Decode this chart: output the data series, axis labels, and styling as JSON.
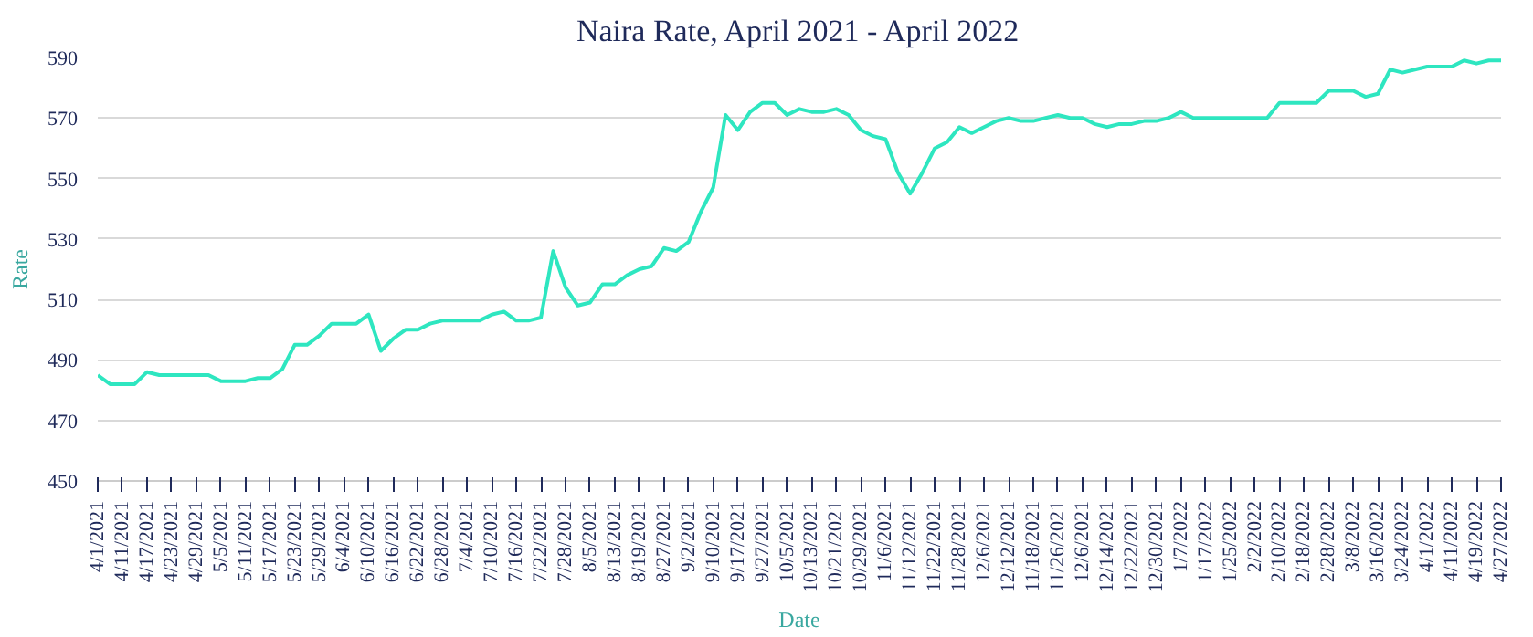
{
  "chart_data": {
    "type": "line",
    "title": "Naira Rate, April 2021 - April 2022",
    "xlabel": "Date",
    "ylabel": "Rate",
    "categories": [
      "4/1/2021",
      null,
      "4/11/2021",
      null,
      "4/17/2021",
      null,
      "4/23/2021",
      null,
      "4/29/2021",
      null,
      "5/5/2021",
      null,
      "5/11/2021",
      null,
      "5/17/2021",
      null,
      "5/23/2021",
      null,
      "5/29/2021",
      null,
      "6/4/2021",
      null,
      "6/10/2021",
      null,
      "6/16/2021",
      null,
      "6/22/2021",
      null,
      "6/28/2021",
      null,
      "7/4/2021",
      null,
      "7/10/2021",
      null,
      "7/16/2021",
      null,
      "7/22/2021",
      null,
      "7/28/2021",
      null,
      "8/5/2021",
      null,
      "8/13/2021",
      null,
      "8/19/2021",
      null,
      "8/27/2021",
      null,
      "9/2/2021",
      null,
      "9/10/2021",
      null,
      "9/17/2021",
      null,
      "9/27/2021",
      null,
      "10/5/2021",
      null,
      "10/13/2021",
      null,
      "10/21/2021",
      null,
      "10/29/2021",
      null,
      "11/6/2021",
      null,
      "11/12/2021",
      null,
      "11/22/2021",
      null,
      "11/28/2021",
      null,
      "12/6/2021",
      null,
      "12/12/2021",
      null,
      "11/18/2021",
      null,
      "11/26/2021",
      null,
      "12/6/2021",
      null,
      "12/14/2021",
      null,
      "12/22/2021",
      null,
      "12/30/2021",
      null,
      "1/7/2022",
      null,
      "1/17/2022",
      null,
      "1/25/2022",
      null,
      "2/2/2022",
      null,
      "2/10/2022",
      null,
      "2/18/2022",
      null,
      "2/28/2022",
      null,
      "3/8/2022",
      null,
      "3/16/2022",
      null,
      "3/24/2022",
      null,
      "4/1/2022",
      null,
      "4/11/2022",
      null,
      "4/19/2022",
      null,
      "4/27/2022"
    ],
    "series": [
      {
        "color": "#2ee6c0",
        "values": [
          485,
          482,
          482,
          482,
          486,
          485,
          485,
          485,
          485,
          485,
          483,
          483,
          483,
          484,
          484,
          487,
          495,
          495,
          498,
          502,
          502,
          502,
          505,
          493,
          497,
          500,
          500,
          502,
          503,
          503,
          503,
          503,
          505,
          506,
          503,
          503,
          504,
          526,
          514,
          508,
          509,
          515,
          515,
          518,
          520,
          521,
          527,
          526,
          529,
          539,
          547,
          571,
          566,
          572,
          575,
          575,
          571,
          573,
          572,
          572,
          573,
          571,
          566,
          564,
          563,
          552,
          545,
          552,
          560,
          562,
          567,
          565,
          567,
          569,
          570,
          569,
          569,
          570,
          571,
          570,
          570,
          568,
          567,
          568,
          568,
          569,
          569,
          570,
          572,
          570,
          570,
          570,
          570,
          570,
          570,
          570,
          575,
          575,
          575,
          575,
          579,
          579,
          579,
          577,
          578,
          586,
          585,
          586,
          587,
          587,
          587,
          589,
          588,
          589,
          589
        ]
      }
    ],
    "ylim": [
      450,
      590
    ],
    "yticks": [
      450,
      470,
      490,
      510,
      530,
      550,
      570,
      590
    ],
    "grid": "y",
    "marker": "none",
    "line_style": "solid"
  }
}
